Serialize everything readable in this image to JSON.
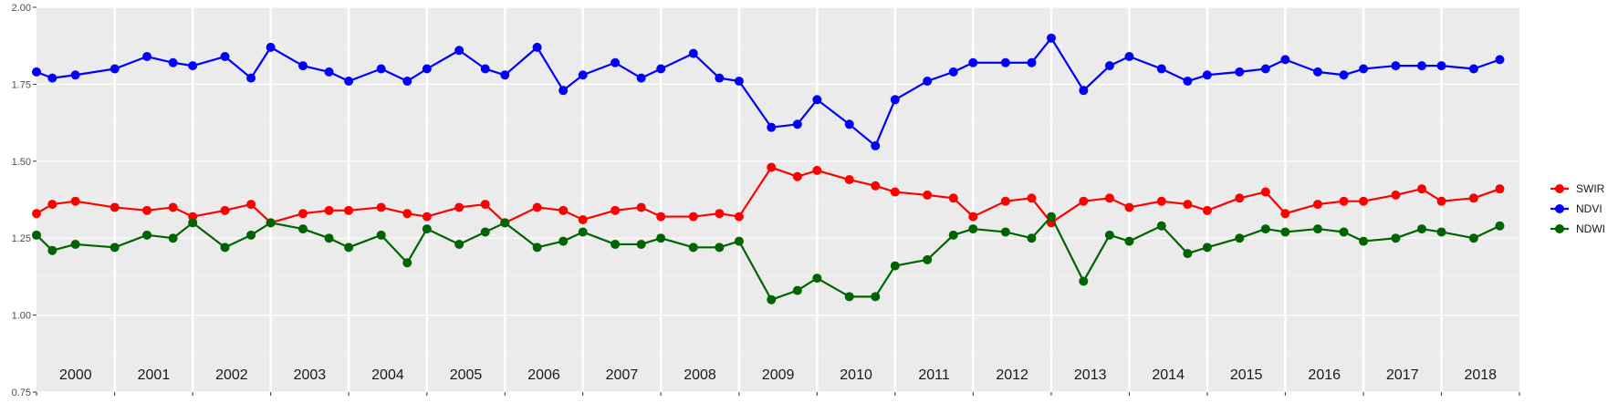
{
  "chart_data": {
    "type": "line",
    "title": "",
    "xlabel": "",
    "ylabel": "",
    "xlim": [
      "2000-01-01",
      "2019-01-01"
    ],
    "ylim": [
      0.75,
      2.0
    ],
    "y_ticks": [
      "0.75",
      "1.00",
      "1.25",
      "1.50",
      "1.75",
      "2.00"
    ],
    "year_labels": [
      "2000",
      "2001",
      "2002",
      "2003",
      "2004",
      "2005",
      "2006",
      "2007",
      "2008",
      "2009",
      "2010",
      "2011",
      "2012",
      "2013",
      "2014",
      "2015",
      "2016",
      "2017",
      "2018"
    ],
    "grid": true,
    "legend_position": "right",
    "legend": [
      "SWIR",
      "NDVI",
      "NDWI"
    ],
    "colors": {
      "SWIR": "#ff0000",
      "NDVI": "#0000ff",
      "NDWI": "#006400"
    },
    "x": [
      "2000-01-01",
      "2000-03-15",
      "2000-07-01",
      "2001-01-01",
      "2001-06-01",
      "2001-10-01",
      "2002-01-01",
      "2002-06-01",
      "2002-10-01",
      "2003-01-01",
      "2003-06-01",
      "2003-10-01",
      "2004-01-01",
      "2004-06-01",
      "2004-10-01",
      "2005-01-01",
      "2005-06-01",
      "2005-10-01",
      "2006-01-01",
      "2006-06-01",
      "2006-10-01",
      "2007-01-01",
      "2007-06-01",
      "2007-10-01",
      "2008-01-01",
      "2008-06-01",
      "2008-10-01",
      "2009-01-01",
      "2009-06-01",
      "2009-10-01",
      "2010-01-01",
      "2010-06-01",
      "2010-10-01",
      "2011-01-01",
      "2011-06-01",
      "2011-10-01",
      "2012-01-01",
      "2012-06-01",
      "2012-10-01",
      "2013-01-01",
      "2013-06-01",
      "2013-10-01",
      "2014-01-01",
      "2014-06-01",
      "2014-10-01",
      "2015-01-01",
      "2015-06-01",
      "2015-10-01",
      "2016-01-01",
      "2016-06-01",
      "2016-10-01",
      "2017-01-01",
      "2017-06-01",
      "2017-10-01",
      "2018-01-01",
      "2018-06-01",
      "2018-10-01"
    ],
    "series": [
      {
        "name": "SWIR",
        "values": [
          1.33,
          1.36,
          1.37,
          1.35,
          1.34,
          1.35,
          1.32,
          1.34,
          1.36,
          1.3,
          1.33,
          1.34,
          1.34,
          1.35,
          1.33,
          1.32,
          1.35,
          1.36,
          1.3,
          1.35,
          1.34,
          1.31,
          1.34,
          1.35,
          1.32,
          1.32,
          1.33,
          1.32,
          1.48,
          1.45,
          1.47,
          1.44,
          1.42,
          1.4,
          1.39,
          1.38,
          1.32,
          1.37,
          1.38,
          1.3,
          1.37,
          1.38,
          1.35,
          1.37,
          1.36,
          1.34,
          1.38,
          1.4,
          1.33,
          1.36,
          1.37,
          1.37,
          1.39,
          1.41,
          1.37,
          1.38,
          1.41
        ]
      },
      {
        "name": "NDVI",
        "values": [
          1.79,
          1.77,
          1.78,
          1.8,
          1.84,
          1.82,
          1.81,
          1.84,
          1.77,
          1.87,
          1.81,
          1.79,
          1.76,
          1.8,
          1.76,
          1.8,
          1.86,
          1.8,
          1.78,
          1.87,
          1.73,
          1.78,
          1.82,
          1.77,
          1.8,
          1.85,
          1.77,
          1.76,
          1.61,
          1.62,
          1.7,
          1.62,
          1.55,
          1.7,
          1.76,
          1.79,
          1.82,
          1.82,
          1.82,
          1.9,
          1.73,
          1.81,
          1.84,
          1.8,
          1.76,
          1.78,
          1.79,
          1.8,
          1.83,
          1.79,
          1.78,
          1.8,
          1.81,
          1.81,
          1.81,
          1.8,
          1.83
        ]
      },
      {
        "name": "NDWI",
        "values": [
          1.26,
          1.21,
          1.23,
          1.22,
          1.26,
          1.25,
          1.3,
          1.22,
          1.26,
          1.3,
          1.28,
          1.25,
          1.22,
          1.26,
          1.17,
          1.28,
          1.23,
          1.27,
          1.3,
          1.22,
          1.24,
          1.27,
          1.23,
          1.23,
          1.25,
          1.22,
          1.22,
          1.24,
          1.05,
          1.08,
          1.12,
          1.06,
          1.06,
          1.16,
          1.18,
          1.26,
          1.28,
          1.27,
          1.25,
          1.32,
          1.11,
          1.26,
          1.24,
          1.29,
          1.2,
          1.22,
          1.25,
          1.28,
          1.27,
          1.28,
          1.27,
          1.24,
          1.25,
          1.28,
          1.27,
          1.25,
          1.29
        ]
      }
    ]
  }
}
